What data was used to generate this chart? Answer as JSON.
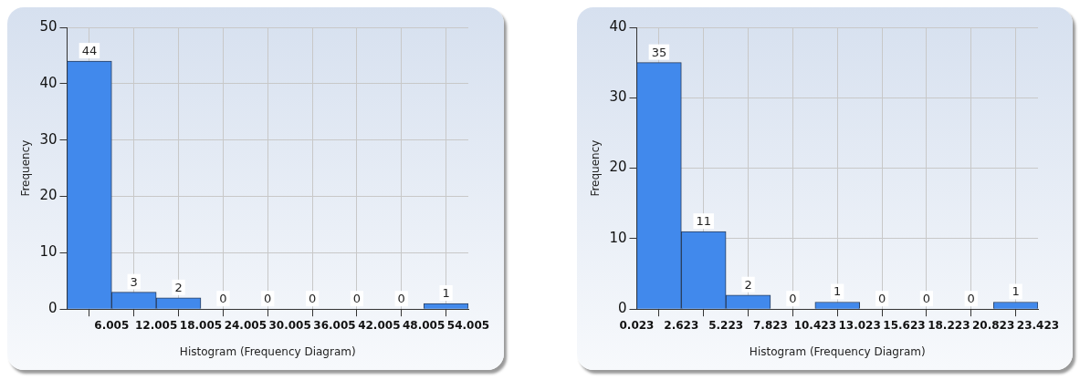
{
  "chart_data": [
    {
      "type": "histogram",
      "xlabel": "Histogram (Frequency Diagram)",
      "ylabel": "Frequency",
      "bins": [
        0.005,
        6.005,
        12.005,
        18.005,
        24.005,
        30.005,
        36.005,
        42.005,
        48.005,
        54.005
      ],
      "values": [
        44,
        3,
        2,
        0,
        0,
        0,
        0,
        0,
        1
      ],
      "color": "#4189ec",
      "xlim": [
        0.005,
        54.005
      ],
      "xticks": [
        {
          "value": 0.005,
          "label": null
        },
        6.005,
        12.005,
        18.005,
        24.005,
        30.005,
        36.005,
        42.005,
        48.005,
        54.005
      ],
      "ylim": [
        0,
        50
      ],
      "yticks": [
        0,
        10,
        20,
        30,
        40,
        50
      ],
      "grid": true,
      "data_labels": true
    },
    {
      "type": "histogram",
      "xlabel": "Histogram (Frequency Diagram)",
      "ylabel": "Frequency",
      "bins": [
        0.023,
        2.623,
        5.223,
        7.823,
        10.423,
        13.023,
        15.623,
        18.223,
        20.823,
        23.423
      ],
      "values": [
        35,
        11,
        2,
        0,
        1,
        0,
        0,
        0,
        1
      ],
      "color": "#4189ec",
      "xlim": [
        0.023,
        23.423
      ],
      "xticks": [
        0.023,
        2.623,
        5.223,
        7.823,
        10.423,
        13.023,
        15.623,
        18.223,
        20.823,
        23.423
      ],
      "ylim": [
        0,
        40
      ],
      "yticks": [
        0,
        10,
        20,
        30,
        40
      ],
      "grid": true,
      "data_labels": true
    }
  ]
}
